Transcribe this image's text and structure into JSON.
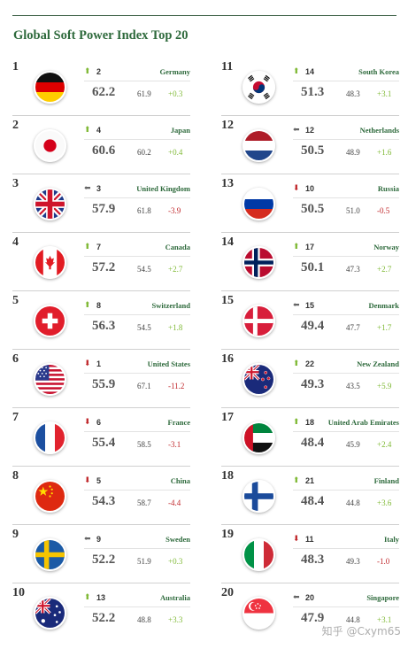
{
  "title": "Global Soft Power Index Top 20",
  "watermark": "知乎 @Cxym65",
  "colors": {
    "title_green": "#2e6a3c",
    "up": "#7fb935",
    "down": "#c0282c",
    "same": "#666666"
  },
  "chart_data": {
    "type": "table",
    "title": "Global Soft Power Index Top 20",
    "columns": [
      "rank",
      "previous_rank",
      "direction",
      "country",
      "score",
      "previous_score",
      "change"
    ],
    "rows": [
      {
        "rank": "1",
        "prev": "2",
        "dir": "up",
        "country": "Germany",
        "score": "62.2",
        "prev_score": "61.9",
        "change": "+0.3",
        "flag": "germany-flag-icon"
      },
      {
        "rank": "2",
        "prev": "4",
        "dir": "up",
        "country": "Japan",
        "score": "60.6",
        "prev_score": "60.2",
        "change": "+0.4",
        "flag": "japan-flag-icon"
      },
      {
        "rank": "3",
        "prev": "3",
        "dir": "same",
        "country": "United Kingdom",
        "score": "57.9",
        "prev_score": "61.8",
        "change": "-3.9",
        "flag": "uk-flag-icon"
      },
      {
        "rank": "4",
        "prev": "7",
        "dir": "up",
        "country": "Canada",
        "score": "57.2",
        "prev_score": "54.5",
        "change": "+2.7",
        "flag": "canada-flag-icon"
      },
      {
        "rank": "5",
        "prev": "8",
        "dir": "up",
        "country": "Switzerland",
        "score": "56.3",
        "prev_score": "54.5",
        "change": "+1.8",
        "flag": "switzerland-flag-icon"
      },
      {
        "rank": "6",
        "prev": "1",
        "dir": "down",
        "country": "United States",
        "score": "55.9",
        "prev_score": "67.1",
        "change": "-11.2",
        "flag": "usa-flag-icon"
      },
      {
        "rank": "7",
        "prev": "6",
        "dir": "down",
        "country": "France",
        "score": "55.4",
        "prev_score": "58.5",
        "change": "-3.1",
        "flag": "france-flag-icon"
      },
      {
        "rank": "8",
        "prev": "5",
        "dir": "down",
        "country": "China",
        "score": "54.3",
        "prev_score": "58.7",
        "change": "-4.4",
        "flag": "china-flag-icon"
      },
      {
        "rank": "9",
        "prev": "9",
        "dir": "same",
        "country": "Sweden",
        "score": "52.2",
        "prev_score": "51.9",
        "change": "+0.3",
        "flag": "sweden-flag-icon"
      },
      {
        "rank": "10",
        "prev": "13",
        "dir": "up",
        "country": "Australia",
        "score": "52.2",
        "prev_score": "48.8",
        "change": "+3.3",
        "flag": "australia-flag-icon"
      },
      {
        "rank": "11",
        "prev": "14",
        "dir": "up",
        "country": "South Korea",
        "score": "51.3",
        "prev_score": "48.3",
        "change": "+3.1",
        "flag": "south-korea-flag-icon"
      },
      {
        "rank": "12",
        "prev": "12",
        "dir": "same",
        "country": "Netherlands",
        "score": "50.5",
        "prev_score": "48.9",
        "change": "+1.6",
        "flag": "netherlands-flag-icon"
      },
      {
        "rank": "13",
        "prev": "10",
        "dir": "down",
        "country": "Russia",
        "score": "50.5",
        "prev_score": "51.0",
        "change": "-0.5",
        "flag": "russia-flag-icon"
      },
      {
        "rank": "14",
        "prev": "17",
        "dir": "up",
        "country": "Norway",
        "score": "50.1",
        "prev_score": "47.3",
        "change": "+2.7",
        "flag": "norway-flag-icon"
      },
      {
        "rank": "15",
        "prev": "15",
        "dir": "same",
        "country": "Denmark",
        "score": "49.4",
        "prev_score": "47.7",
        "change": "+1.7",
        "flag": "denmark-flag-icon"
      },
      {
        "rank": "16",
        "prev": "22",
        "dir": "up",
        "country": "New Zealand",
        "score": "49.3",
        "prev_score": "43.5",
        "change": "+5.9",
        "flag": "new-zealand-flag-icon"
      },
      {
        "rank": "17",
        "prev": "18",
        "dir": "up",
        "country": "United Arab Emirates",
        "score": "48.4",
        "prev_score": "45.9",
        "change": "+2.4",
        "flag": "uae-flag-icon"
      },
      {
        "rank": "18",
        "prev": "21",
        "dir": "up",
        "country": "Finland",
        "score": "48.4",
        "prev_score": "44.8",
        "change": "+3.6",
        "flag": "finland-flag-icon"
      },
      {
        "rank": "19",
        "prev": "11",
        "dir": "down",
        "country": "Italy",
        "score": "48.3",
        "prev_score": "49.3",
        "change": "-1.0",
        "flag": "italy-flag-icon"
      },
      {
        "rank": "20",
        "prev": "20",
        "dir": "same",
        "country": "Singapore",
        "score": "47.9",
        "prev_score": "44.8",
        "change": "+3.1",
        "flag": "singapore-flag-icon"
      }
    ]
  }
}
